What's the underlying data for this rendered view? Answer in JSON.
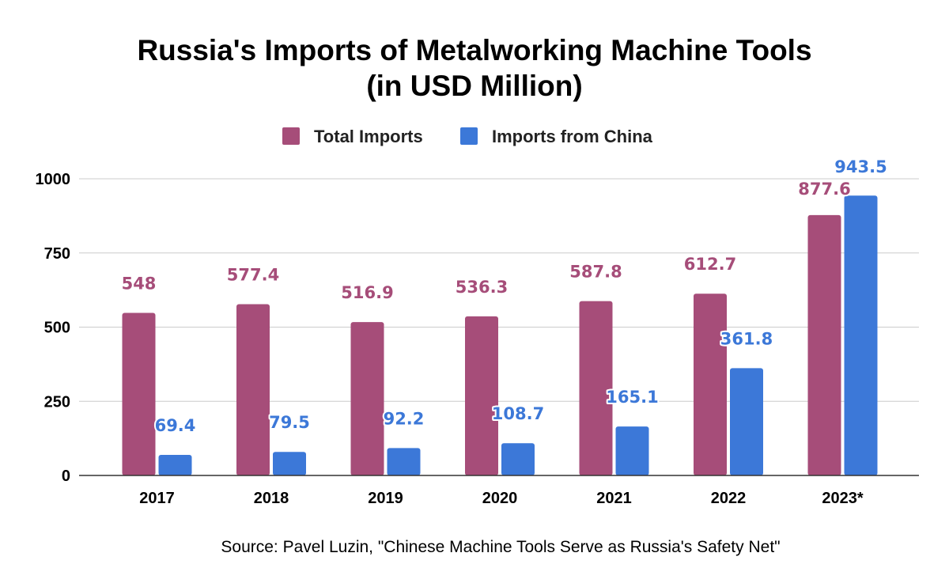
{
  "chart_data": {
    "type": "bar",
    "title_lines": [
      "Russia's Imports of Metalworking Machine Tools",
      "(in USD Million)"
    ],
    "categories": [
      "2017",
      "2018",
      "2019",
      "2020",
      "2021",
      "2022",
      "2023*"
    ],
    "series": [
      {
        "name": "Total Imports",
        "color": "#a64d79",
        "values": [
          548,
          577.4,
          516.9,
          536.3,
          587.8,
          612.7,
          877.6
        ],
        "labels": [
          "548",
          "577.4",
          "516.9",
          "536.3",
          "587.8",
          "612.7",
          "877.6"
        ]
      },
      {
        "name": "Imports from China",
        "color": "#3c78d8",
        "values": [
          69.4,
          79.5,
          92.2,
          108.7,
          165.1,
          361.8,
          943.5
        ],
        "labels": [
          "69.4",
          "79.5",
          "92.2",
          "108.7",
          "165.1",
          "361.8",
          "943.5"
        ]
      }
    ],
    "ylim": [
      0,
      1000
    ],
    "yticks": [
      0,
      250,
      500,
      750,
      1000
    ],
    "ytick_labels": [
      "0",
      "250",
      "500",
      "750",
      "1000"
    ],
    "xlabel": "",
    "ylabel": "",
    "grid": true,
    "legend_position": "top-center",
    "source": "Source: Pavel Luzin, \"Chinese Machine Tools Serve as Russia's Safety Net\""
  }
}
